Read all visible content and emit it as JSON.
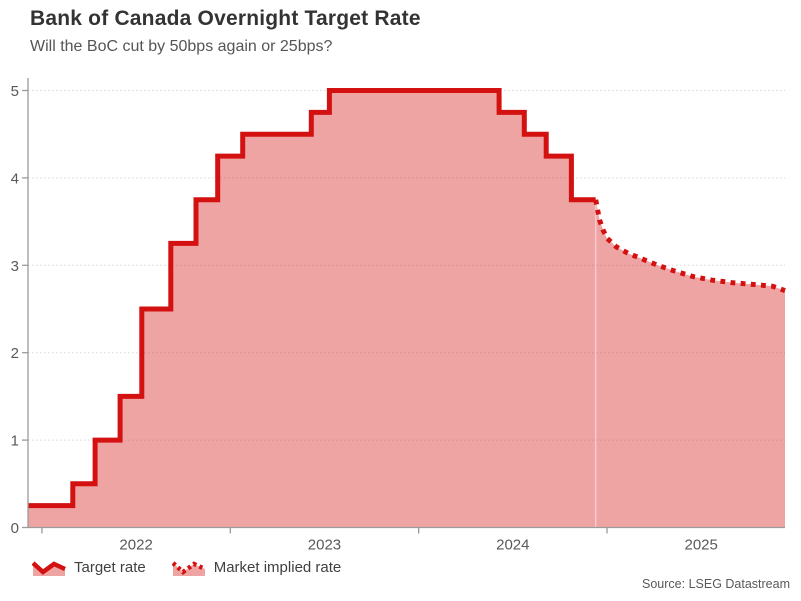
{
  "header": {
    "title": "Bank of Canada Overnight Target Rate",
    "subtitle": "Will the BoC cut by 50bps again or 25bps?"
  },
  "legend": {
    "items": [
      {
        "label": "Target rate",
        "style": "solid"
      },
      {
        "label": "Market implied rate",
        "style": "dotted"
      }
    ]
  },
  "footer": {
    "source": "Source: LSEG Datastream"
  },
  "colors": {
    "line_red": "#d41111",
    "fill_pink": "rgba(212,17,17,0.38)",
    "grid": "#d8d8d8",
    "axis": "#9b9b9b",
    "axis_label": "#595959",
    "seam": "rgba(255,255,255,0.40)"
  },
  "chart_data": {
    "type": "area",
    "title": "Bank of Canada Overnight Target Rate",
    "subtitle": "Will the BoC cut by 50bps again or 25bps?",
    "xlabel": "",
    "ylabel": "",
    "ylim": [
      0,
      5
    ],
    "xlim": [
      2021.926,
      2025.945
    ],
    "x_unit": "decimal_year",
    "grid": "horizontal-dotted",
    "legend_position": "bottom-left",
    "y_ticks": [
      0,
      1,
      2,
      3,
      4,
      5
    ],
    "x_ticks": [
      {
        "value": 2022,
        "label": "2022"
      },
      {
        "value": 2023,
        "label": "2023"
      },
      {
        "value": 2024,
        "label": "2024"
      },
      {
        "value": 2025,
        "label": "2025"
      }
    ],
    "series": [
      {
        "name": "Target rate",
        "type": "step-after",
        "line_style": "solid",
        "end_x": 2024.94,
        "points": [
          [
            2021.926,
            0.25
          ],
          [
            2022.164,
            0.5
          ],
          [
            2022.282,
            1.0
          ],
          [
            2022.415,
            1.5
          ],
          [
            2022.53,
            2.5
          ],
          [
            2022.684,
            3.25
          ],
          [
            2022.818,
            3.75
          ],
          [
            2022.933,
            4.25
          ],
          [
            2023.066,
            4.5
          ],
          [
            2023.43,
            4.75
          ],
          [
            2023.526,
            5.0
          ],
          [
            2024.427,
            4.75
          ],
          [
            2024.561,
            4.5
          ],
          [
            2024.677,
            4.25
          ],
          [
            2024.811,
            3.75
          ]
        ]
      },
      {
        "name": "Market implied rate",
        "type": "line",
        "line_style": "dotted",
        "points": [
          [
            2024.94,
            3.75
          ],
          [
            2024.96,
            3.52
          ],
          [
            2024.98,
            3.4
          ],
          [
            2025.0,
            3.31
          ],
          [
            2025.05,
            3.21
          ],
          [
            2025.11,
            3.14
          ],
          [
            2025.19,
            3.07
          ],
          [
            2025.27,
            3.0
          ],
          [
            2025.35,
            2.94
          ],
          [
            2025.46,
            2.87
          ],
          [
            2025.56,
            2.83
          ],
          [
            2025.67,
            2.8
          ],
          [
            2025.78,
            2.78
          ],
          [
            2025.88,
            2.76
          ],
          [
            2025.945,
            2.71
          ]
        ]
      }
    ]
  }
}
